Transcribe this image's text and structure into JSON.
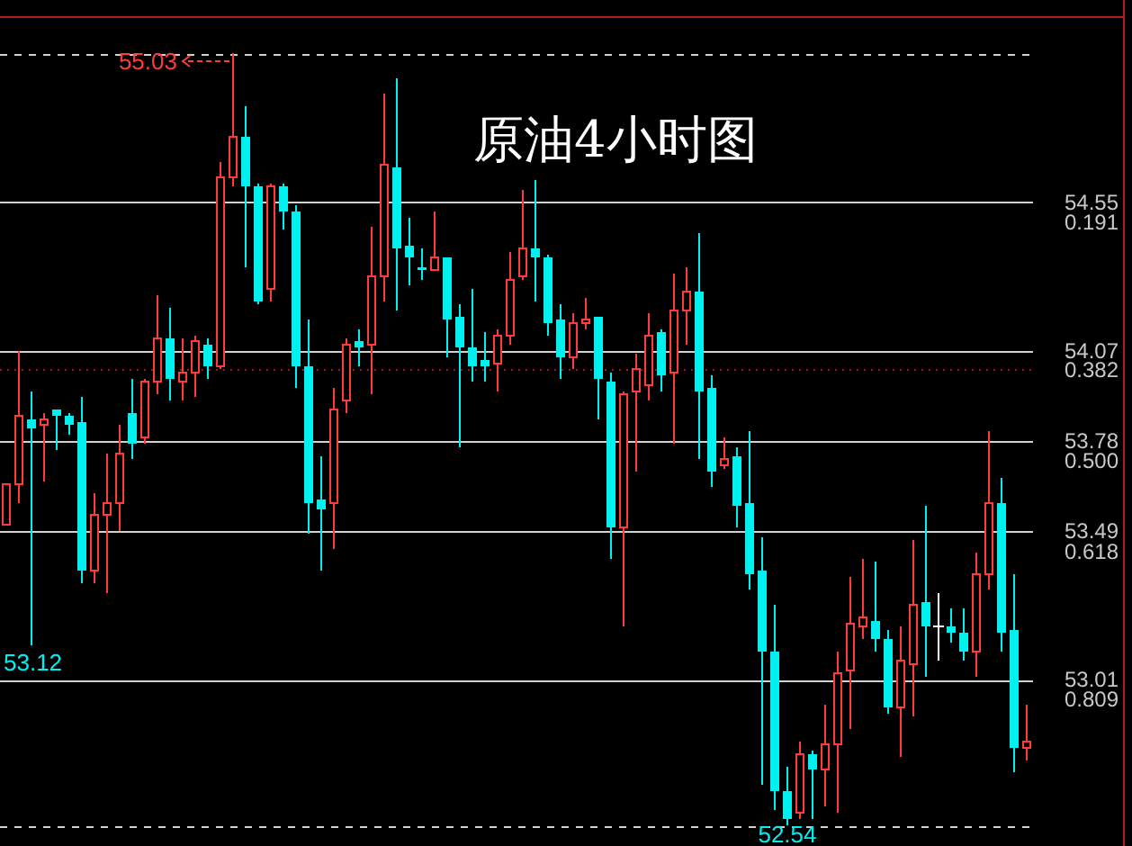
{
  "chart_data": {
    "type": "candlestick",
    "title": "原油4小时图",
    "categories": [
      null,
      null,
      null,
      null,
      null,
      null,
      null,
      null,
      null,
      null,
      null,
      null,
      null,
      null,
      null,
      null,
      null,
      null,
      null,
      null,
      null,
      null,
      null,
      null,
      null,
      null,
      null,
      null,
      null,
      null,
      null,
      null,
      null,
      null,
      null,
      null,
      null,
      null,
      null,
      null,
      null,
      null,
      null,
      null,
      null,
      null,
      null,
      null,
      null,
      null,
      null,
      null,
      null,
      null,
      null,
      null,
      null,
      null,
      null,
      null,
      null,
      null,
      null,
      null,
      null,
      null,
      null,
      null,
      null,
      null,
      null,
      null,
      null,
      null,
      null,
      null,
      null,
      null,
      null,
      null,
      null,
      null
    ],
    "ohlc": [
      [
        53.51,
        53.64,
        53.51,
        53.64
      ],
      [
        53.64,
        54.07,
        53.58,
        53.86
      ],
      [
        53.85,
        53.94,
        53.12,
        53.82
      ],
      [
        53.83,
        53.87,
        53.65,
        53.85
      ],
      [
        53.88,
        53.88,
        53.75,
        53.86
      ],
      [
        53.86,
        53.87,
        53.8,
        53.83
      ],
      [
        53.84,
        53.92,
        53.32,
        53.36
      ],
      [
        53.36,
        53.61,
        53.32,
        53.54
      ],
      [
        53.54,
        53.74,
        53.29,
        53.58
      ],
      [
        53.58,
        53.83,
        53.49,
        53.74
      ],
      [
        53.87,
        53.98,
        53.72,
        53.77
      ],
      [
        53.79,
        53.98,
        53.77,
        53.97
      ],
      [
        53.97,
        54.25,
        53.93,
        54.11
      ],
      [
        54.11,
        54.21,
        53.91,
        53.98
      ],
      [
        53.97,
        54.11,
        53.91,
        54.0
      ],
      [
        54.0,
        54.12,
        53.92,
        54.1
      ],
      [
        54.09,
        54.11,
        53.98,
        54.02
      ],
      [
        54.02,
        54.68,
        54.01,
        54.63
      ],
      [
        54.63,
        55.03,
        54.6,
        54.76
      ],
      [
        54.76,
        54.86,
        54.34,
        54.6
      ],
      [
        54.6,
        54.61,
        54.22,
        54.23
      ],
      [
        54.27,
        54.61,
        54.23,
        54.6
      ],
      [
        54.6,
        54.61,
        54.46,
        54.52
      ],
      [
        54.52,
        54.54,
        53.95,
        54.02
      ],
      [
        54.02,
        54.17,
        53.48,
        53.58
      ],
      [
        53.59,
        53.73,
        53.36,
        53.56
      ],
      [
        53.58,
        53.95,
        53.43,
        53.88
      ],
      [
        53.91,
        54.11,
        53.87,
        54.09
      ],
      [
        54.1,
        54.14,
        54.02,
        54.08
      ],
      [
        54.09,
        54.47,
        53.93,
        54.31
      ],
      [
        54.31,
        54.9,
        54.23,
        54.67
      ],
      [
        54.66,
        54.95,
        54.2,
        54.4
      ],
      [
        54.41,
        54.5,
        54.28,
        54.37
      ],
      [
        54.34,
        54.4,
        54.3,
        54.33
      ],
      [
        54.33,
        54.52,
        54.33,
        54.37
      ],
      [
        54.37,
        54.37,
        54.05,
        54.17
      ],
      [
        54.18,
        54.22,
        53.76,
        54.08
      ],
      [
        54.08,
        54.27,
        53.97,
        54.02
      ],
      [
        54.04,
        54.13,
        53.97,
        54.02
      ],
      [
        54.03,
        54.14,
        53.94,
        54.12
      ],
      [
        54.12,
        54.39,
        54.09,
        54.3
      ],
      [
        54.31,
        54.59,
        54.3,
        54.4
      ],
      [
        54.4,
        54.62,
        54.23,
        54.37
      ],
      [
        54.37,
        54.38,
        54.12,
        54.16
      ],
      [
        54.17,
        54.22,
        53.98,
        54.05
      ],
      [
        54.05,
        54.19,
        54.01,
        54.16
      ],
      [
        54.16,
        54.24,
        54.14,
        54.17
      ],
      [
        54.18,
        54.18,
        53.85,
        53.98
      ],
      [
        53.97,
        54.0,
        53.4,
        53.5
      ],
      [
        53.5,
        53.94,
        53.18,
        53.93
      ],
      [
        53.94,
        54.06,
        53.68,
        54.01
      ],
      [
        53.96,
        54.19,
        53.91,
        54.12
      ],
      [
        54.13,
        54.14,
        53.94,
        53.99
      ],
      [
        54.0,
        54.32,
        53.77,
        54.2
      ],
      [
        54.2,
        54.34,
        54.09,
        54.26
      ],
      [
        54.26,
        54.45,
        53.72,
        53.94
      ],
      [
        53.95,
        53.99,
        53.63,
        53.68
      ],
      [
        53.7,
        53.79,
        53.69,
        53.72
      ],
      [
        53.73,
        53.76,
        53.5,
        53.57
      ],
      [
        53.58,
        53.81,
        53.3,
        53.35
      ],
      [
        53.36,
        53.47,
        52.67,
        53.1
      ],
      [
        53.1,
        53.25,
        52.59,
        52.65
      ],
      [
        52.65,
        52.73,
        52.54,
        52.56
      ],
      [
        52.58,
        52.81,
        52.56,
        52.77
      ],
      [
        52.77,
        52.78,
        52.56,
        52.72
      ],
      [
        52.72,
        52.93,
        52.6,
        52.8
      ],
      [
        52.8,
        53.1,
        52.58,
        53.03
      ],
      [
        53.04,
        53.34,
        52.85,
        53.19
      ],
      [
        53.18,
        53.4,
        53.14,
        53.21
      ],
      [
        53.2,
        53.39,
        53.1,
        53.14
      ],
      [
        53.14,
        53.17,
        52.9,
        52.92
      ],
      [
        52.92,
        53.18,
        52.76,
        53.07
      ],
      [
        53.06,
        53.46,
        52.89,
        53.25
      ],
      [
        53.26,
        53.57,
        53.02,
        53.18
      ],
      [
        53.18,
        53.29,
        53.07,
        53.18
      ],
      [
        53.18,
        53.24,
        53.13,
        53.16
      ],
      [
        53.16,
        53.24,
        53.07,
        53.1
      ],
      [
        53.1,
        53.42,
        53.02,
        53.35
      ],
      [
        53.35,
        53.81,
        53.3,
        53.58
      ],
      [
        53.58,
        53.66,
        53.1,
        53.16
      ],
      [
        53.17,
        53.35,
        52.71,
        52.79
      ],
      [
        52.79,
        52.93,
        52.75,
        52.81
      ]
    ],
    "colors": [
      "#ff3b3b",
      "#ff3b3b",
      "#00f0f0",
      "#ff3b3b",
      "#00f0f0",
      "#00f0f0",
      "#00f0f0",
      "#ff3b3b",
      "#ff3b3b",
      "#ff3b3b",
      "#00f0f0",
      "#ff3b3b",
      "#ff3b3b",
      "#00f0f0",
      "#ff3b3b",
      "#ff3b3b",
      "#00f0f0",
      "#ff3b3b",
      "#ff3b3b",
      "#00f0f0",
      "#00f0f0",
      "#ff3b3b",
      "#00f0f0",
      "#00f0f0",
      "#00f0f0",
      "#00f0f0",
      "#ff3b3b",
      "#ff3b3b",
      "#00f0f0",
      "#ff3b3b",
      "#ff3b3b",
      "#00f0f0",
      "#00f0f0",
      "#00f0f0",
      "#ff3b3b",
      "#00f0f0",
      "#00f0f0",
      "#00f0f0",
      "#00f0f0",
      "#ff3b3b",
      "#ff3b3b",
      "#ff3b3b",
      "#00f0f0",
      "#00f0f0",
      "#00f0f0",
      "#ff3b3b",
      "#ff3b3b",
      "#00f0f0",
      "#00f0f0",
      "#ff3b3b",
      "#ff3b3b",
      "#ff3b3b",
      "#00f0f0",
      "#ff3b3b",
      "#ff3b3b",
      "#00f0f0",
      "#00f0f0",
      "#ff3b3b",
      "#00f0f0",
      "#00f0f0",
      "#00f0f0",
      "#00f0f0",
      "#00f0f0",
      "#ff3b3b",
      "#00f0f0",
      "#ff3b3b",
      "#ff3b3b",
      "#ff3b3b",
      "#ff3b3b",
      "#00f0f0",
      "#00f0f0",
      "#ff3b3b",
      "#ff3b3b",
      "#00f0f0",
      "#ffffff",
      "#00f0f0",
      "#00f0f0",
      "#ff3b3b",
      "#ff3b3b",
      "#00f0f0",
      "#00f0f0",
      "#ff3b3b"
    ],
    "ylim": [
      52.54,
      55.03
    ],
    "yticks": [
      54.55,
      54.07,
      53.78,
      53.49,
      53.01
    ],
    "y2lim": [
      1,
      0
    ],
    "y2ticks": [
      0.191,
      0.382,
      {
        "value": 0.5,
        "label": "0.500"
      },
      0.618,
      0.809
    ],
    "grid": "y",
    "ref_lines": [
      {
        "axis": "y",
        "value": 55.03,
        "color": "#d0d0d0",
        "line_style": "dashed"
      },
      {
        "axis": "y",
        "value": 54.01,
        "color": "#a01818",
        "line_style": "dotted"
      },
      {
        "axis": "y",
        "value": 52.54,
        "color": "#d0d0d0",
        "line_style": "dashed"
      }
    ],
    "annotations": [
      {
        "text": "55.03",
        "y": 55.03
      },
      {
        "text": "53.12",
        "y": 53.12
      },
      {
        "text": "52.54",
        "y": 52.54
      }
    ]
  }
}
